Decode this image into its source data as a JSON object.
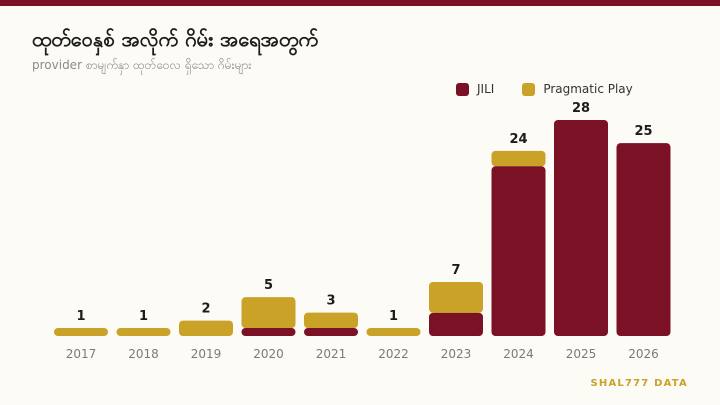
{
  "header": {
    "title": "ထုတ်ဝေနှစ် အလိုက် ဂိမ်း အရေအတွက်",
    "subtitle": "provider စာမျက်နှာ ထုတ်ဝေလ ရှိသော ဂိမ်းများ"
  },
  "brand": "SHAL777 DATA",
  "colors": {
    "jili": "#7a1124",
    "pragmatic": "#c9a227",
    "background": "#fcfbf6"
  },
  "chart_data": {
    "type": "bar",
    "stacked": true,
    "categories": [
      "2017",
      "2018",
      "2019",
      "2020",
      "2021",
      "2022",
      "2023",
      "2024",
      "2025",
      "2026"
    ],
    "series": [
      {
        "name": "JILI",
        "color": "#7a1124",
        "values": [
          0,
          0,
          0,
          1,
          1,
          0,
          3,
          22,
          28,
          25
        ]
      },
      {
        "name": "Pragmatic Play",
        "color": "#c9a227",
        "values": [
          1,
          1,
          2,
          4,
          2,
          1,
          4,
          2,
          0,
          0
        ]
      }
    ],
    "totals": [
      1,
      1,
      2,
      5,
      3,
      1,
      7,
      24,
      28,
      25
    ],
    "ylim": [
      0,
      28
    ],
    "legend": "top-right",
    "grid": false
  }
}
